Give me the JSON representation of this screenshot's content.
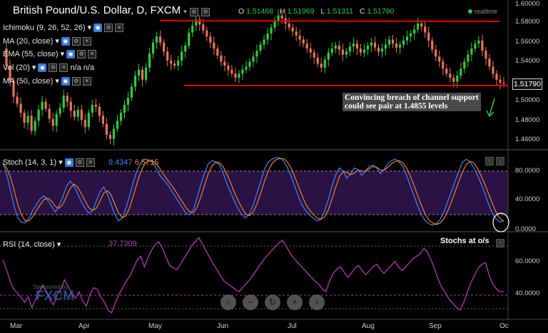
{
  "header": {
    "title": "British Pound/U.S. Dollar, D, FXCM",
    "ohlc": [
      {
        "key": "O",
        "value": "1.51468"
      },
      {
        "key": "H",
        "value": "1.51969"
      },
      {
        "key": "L",
        "value": "1.51311"
      },
      {
        "key": "C",
        "value": "1.51790"
      }
    ],
    "realtime_label": "realtime",
    "realtime_color": "#2ecc40"
  },
  "indicators": [
    {
      "label": "Ichimoku (9, 26, 52, 26)"
    },
    {
      "label": "MA (20, close)"
    },
    {
      "label": "EMA (55, close)"
    },
    {
      "label": "Vol (20)",
      "extra": "n/a n/a"
    },
    {
      "label": "MA (50, close)"
    }
  ],
  "annotation": {
    "text": "Convincing breach of channel support could see pair at 1.4855 levels"
  },
  "price_tag": "1.51790",
  "chart_data": [
    {
      "type": "candlestick",
      "title": "British Pound/U.S. Dollar, D, FXCM",
      "yticks": [
        "1.60000",
        "1.58000",
        "1.56000",
        "1.54000",
        "1.52000",
        "1.50000",
        "1.48000",
        "1.46000"
      ],
      "ylim": [
        1.455,
        1.6
      ],
      "xticks": [
        "Mar",
        "Apr",
        "May",
        "Jun",
        "Jul",
        "Aug",
        "Sep",
        "Oc"
      ],
      "resistance_level": 1.582,
      "support_level": 1.5185,
      "colors": {
        "up": "#2ecc40",
        "down": "#e8745a",
        "level": "#e00000"
      },
      "close": [
        1.553,
        1.536,
        1.521,
        1.505,
        1.498,
        1.489,
        1.479,
        1.486,
        1.471,
        1.481,
        1.492,
        1.5,
        1.493,
        1.483,
        1.476,
        1.488,
        1.494,
        1.506,
        1.5,
        1.491,
        1.485,
        1.492,
        1.482,
        1.475,
        1.489,
        1.497,
        1.495,
        1.486,
        1.478,
        1.467,
        1.463,
        1.473,
        1.481,
        1.489,
        1.497,
        1.504,
        1.515,
        1.526,
        1.532,
        1.522,
        1.534,
        1.548,
        1.559,
        1.565,
        1.559,
        1.55,
        1.541,
        1.538,
        1.536,
        1.541,
        1.55,
        1.556,
        1.569,
        1.576,
        1.582,
        1.577,
        1.571,
        1.565,
        1.559,
        1.553,
        1.546,
        1.54,
        1.536,
        1.532,
        1.528,
        1.524,
        1.528,
        1.532,
        1.535,
        1.54,
        1.545,
        1.551,
        1.557,
        1.562,
        1.568,
        1.574,
        1.58,
        1.586,
        1.583,
        1.578,
        1.574,
        1.57,
        1.566,
        1.562,
        1.558,
        1.553,
        1.549,
        1.544,
        1.538,
        1.534,
        1.542,
        1.549,
        1.553,
        1.556,
        1.552,
        1.547,
        1.55,
        1.555,
        1.558,
        1.553,
        1.549,
        1.552,
        1.556,
        1.559,
        1.554,
        1.55,
        1.553,
        1.557,
        1.562,
        1.558,
        1.554,
        1.557,
        1.561,
        1.565,
        1.568,
        1.572,
        1.578,
        1.575,
        1.569,
        1.561,
        1.552,
        1.545,
        1.54,
        1.533,
        1.528,
        1.524,
        1.52,
        1.526,
        1.533,
        1.54,
        1.547,
        1.553,
        1.558,
        1.561,
        1.551,
        1.543,
        1.535,
        1.528,
        1.522,
        1.519,
        1.518
      ]
    },
    {
      "type": "line",
      "title": "Stoch (14, 3, 1)",
      "values_shown": [
        "9.4347",
        "6.5715"
      ],
      "yticks": [
        "80.0000",
        "40.0000",
        "0.0000"
      ],
      "ylim": [
        -5,
        100
      ],
      "overbought": 80,
      "oversold": 20,
      "series": [
        {
          "color": "#3a86ff",
          "values": [
            88,
            72,
            50,
            28,
            12,
            6,
            5,
            12,
            22,
            30,
            38,
            42,
            36,
            28,
            20,
            28,
            40,
            55,
            62,
            56,
            45,
            34,
            25,
            18,
            22,
            35,
            48,
            54,
            44,
            30,
            16,
            8,
            12,
            26,
            44,
            62,
            78,
            88,
            92,
            90,
            88,
            80,
            70,
            64,
            58,
            50,
            42,
            34,
            26,
            18,
            16,
            24,
            40,
            58,
            74,
            86,
            90,
            88,
            84,
            72,
            58,
            46,
            34,
            24,
            16,
            12,
            18,
            30,
            46,
            62,
            78,
            88,
            92,
            94,
            94,
            90,
            82,
            70,
            56,
            42,
            30,
            22,
            16,
            12,
            8,
            10,
            20,
            36,
            54,
            70,
            80,
            76,
            66,
            72,
            80,
            78,
            70,
            76,
            82,
            84,
            80,
            72,
            78,
            86,
            90,
            92,
            88,
            82,
            70,
            56,
            42,
            28,
            16,
            8,
            4,
            2,
            4,
            10,
            20,
            34,
            48,
            62,
            76,
            88,
            92,
            88,
            80,
            70,
            58,
            44,
            30,
            18,
            10,
            6,
            9
          ]
        },
        {
          "color": "#f08020",
          "values": [
            86,
            80,
            68,
            50,
            30,
            16,
            8,
            8,
            14,
            22,
            30,
            37,
            39,
            35,
            28,
            25,
            30,
            41,
            52,
            58,
            54,
            45,
            35,
            26,
            22,
            25,
            35,
            46,
            49,
            43,
            30,
            18,
            12,
            15,
            27,
            44,
            61,
            76,
            86,
            90,
            90,
            86,
            79,
            71,
            64,
            57,
            50,
            42,
            34,
            26,
            20,
            19,
            27,
            41,
            57,
            73,
            83,
            88,
            87,
            81,
            71,
            59,
            46,
            35,
            25,
            17,
            15,
            20,
            31,
            46,
            62,
            76,
            86,
            91,
            93,
            93,
            89,
            81,
            69,
            56,
            43,
            31,
            23,
            17,
            12,
            10,
            13,
            22,
            37,
            53,
            68,
            75,
            74,
            71,
            73,
            77,
            76,
            75,
            79,
            82,
            81,
            77,
            77,
            81,
            86,
            89,
            90,
            87,
            80,
            69,
            56,
            42,
            29,
            17,
            9,
            5,
            3,
            5,
            11,
            21,
            34,
            48,
            62,
            75,
            85,
            89,
            87,
            79,
            69,
            57,
            44,
            31,
            19,
            11,
            7
          ]
        }
      ]
    },
    {
      "type": "line",
      "title": "RSI (14, close)",
      "values_shown": [
        "37.7309"
      ],
      "yticks": [
        "60.0000",
        "40.0000"
      ],
      "ylim": [
        18,
        82
      ],
      "level": 40,
      "series": [
        {
          "color": "#b03ab0",
          "values": [
            62,
            55,
            46,
            40,
            37,
            34,
            30,
            34,
            26,
            32,
            38,
            43,
            38,
            32,
            28,
            36,
            40,
            47,
            42,
            36,
            33,
            38,
            31,
            27,
            36,
            41,
            40,
            34,
            30,
            24,
            22,
            30,
            36,
            41,
            46,
            50,
            56,
            62,
            65,
            57,
            64,
            70,
            74,
            76,
            71,
            64,
            58,
            56,
            55,
            59,
            64,
            68,
            73,
            76,
            79,
            74,
            69,
            64,
            59,
            55,
            50,
            46,
            44,
            42,
            40,
            38,
            41,
            44,
            47,
            51,
            55,
            59,
            63,
            66,
            69,
            72,
            75,
            77,
            73,
            68,
            64,
            61,
            58,
            55,
            52,
            49,
            46,
            44,
            40,
            38,
            46,
            52,
            55,
            57,
            53,
            49,
            52,
            56,
            58,
            54,
            51,
            54,
            57,
            59,
            55,
            52,
            55,
            58,
            61,
            57,
            54,
            57,
            60,
            63,
            65,
            67,
            71,
            68,
            62,
            55,
            47,
            41,
            37,
            32,
            29,
            26,
            24,
            30,
            38,
            45,
            51,
            56,
            59,
            60,
            50,
            44,
            40,
            38,
            38
          ]
        }
      ]
    }
  ],
  "stoch_note": "Stochs at o/s",
  "sponsor": {
    "label": "Sponsored by",
    "brand": "FXCM"
  }
}
